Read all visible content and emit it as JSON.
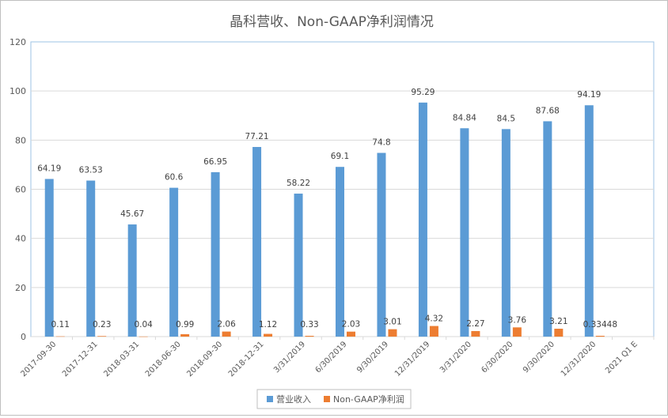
{
  "chart_data": {
    "type": "bar",
    "title": "晶科营收、Non-GAAP净利润情况",
    "categories": [
      "2017-09-30",
      "2017-12-31",
      "2018-03-31",
      "2018-06-30",
      "2018-09-30",
      "2018-12-31",
      "3/31/2019",
      "6/30/2019",
      "9/30/2019",
      "12/31/2019",
      "3/31/2020",
      "6/30/2020",
      "9/30/2020",
      "12/31/2020",
      "2021 Q1 E"
    ],
    "series": [
      {
        "name": "营业收入",
        "color": "#5b9bd5",
        "values": [
          64.19,
          63.53,
          45.67,
          60.6,
          66.95,
          77.21,
          58.22,
          69.1,
          74.8,
          95.29,
          84.84,
          84.5,
          87.68,
          94.19,
          null
        ],
        "labels": [
          "64.19",
          "63.53",
          "45.67",
          "60.6",
          "66.95",
          "77.21",
          "58.22",
          "69.1",
          "74.8",
          "95.29",
          "84.84",
          "84.5",
          "87.68",
          "94.19",
          ""
        ]
      },
      {
        "name": "Non-GAAP净利润",
        "color": "#ed7d31",
        "values": [
          0.11,
          0.23,
          0.04,
          0.99,
          2.06,
          1.12,
          0.33,
          2.03,
          3.01,
          4.32,
          2.27,
          3.76,
          3.21,
          0.33448,
          null
        ],
        "labels": [
          "0.11",
          "0.23",
          "0.04",
          "0.99",
          "2.06",
          "1.12",
          "0.33",
          "2.03",
          "3.01",
          "4.32",
          "2.27",
          "3.76",
          "3.21",
          "0.33448",
          ""
        ]
      }
    ],
    "ylim": [
      0,
      120
    ],
    "yticks": [
      0,
      20,
      40,
      60,
      80,
      100,
      120
    ],
    "grid": true,
    "legend_position": "bottom"
  }
}
